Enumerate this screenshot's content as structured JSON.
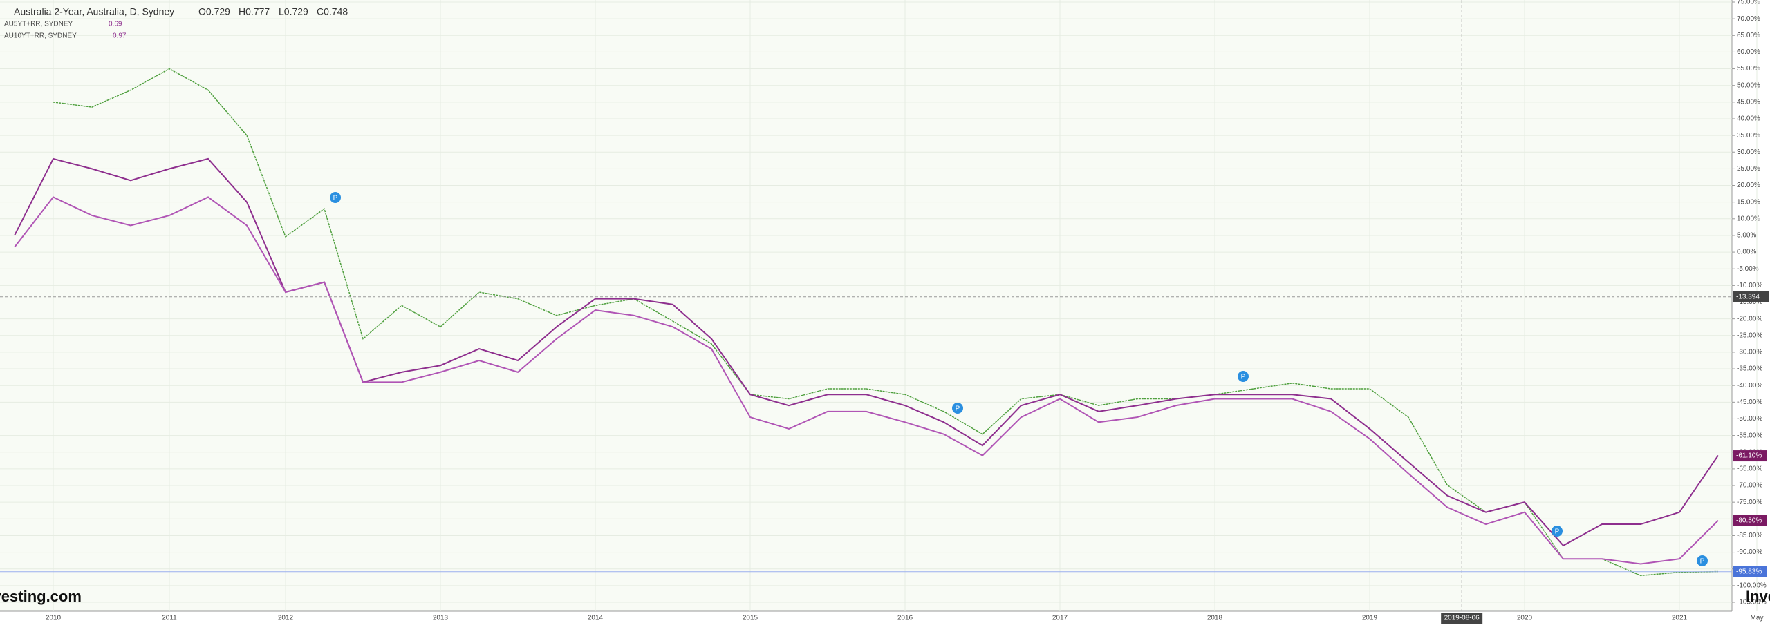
{
  "header": {
    "ohlc": [
      "O0.729",
      "H0.777",
      "L0.729",
      "C0.748"
    ]
  },
  "chart_data": {
    "type": "line",
    "categories": [
      null,
      "2010",
      null,
      null,
      "2011",
      null,
      null,
      "2012",
      null,
      null,
      null,
      "2013",
      null,
      null,
      null,
      "2014",
      null,
      null,
      null,
      "2015",
      null,
      null,
      null,
      "2016",
      null,
      null,
      null,
      "2017",
      null,
      null,
      null,
      "2018",
      null,
      null,
      null,
      "2019",
      null,
      null,
      null,
      "2020",
      null,
      null,
      null,
      "2021",
      null,
      "May"
    ],
    "series": [
      {
        "name": "Australia 2-Year, Australia, D, Sydney",
        "color": "#4e9f3d",
        "values": [
          null,
          45,
          43.5,
          48.6,
          55,
          48.6,
          35,
          4.6,
          13,
          -26,
          -16,
          -22.4,
          -12,
          -14,
          -19,
          -16,
          -14,
          -20.7,
          -27.5,
          -42.7,
          -44,
          -41,
          -41,
          -42.7,
          -47.8,
          -54.6,
          -44,
          -42.7,
          -46,
          -44,
          -44,
          -42.7,
          -41,
          -39.3,
          -41,
          -41,
          -49.5,
          -69.8,
          -78,
          -75,
          -92,
          -92,
          -97,
          -96,
          -95.8,
          null
        ]
      },
      {
        "name": "AU5YT+RR, SYDNEY",
        "color": "#8e2f8e",
        "last": "0.69",
        "values": [
          5,
          28,
          25,
          21.5,
          25,
          28,
          15,
          -12,
          -9,
          -39,
          -36,
          -34,
          -29,
          -32.5,
          -22.4,
          -14,
          -14,
          -15.7,
          -26,
          -42.7,
          -46,
          -42.7,
          -42.7,
          -46,
          -51,
          -58,
          -46,
          -42.7,
          -47.8,
          -46,
          -44,
          -42.7,
          -42.7,
          -42.7,
          -44,
          -53,
          -63,
          -73,
          -78,
          -75,
          -88,
          -81.6,
          -81.6,
          -78,
          -61,
          null
        ]
      },
      {
        "name": "AU10YT+RR, SYDNEY",
        "color": "#b055b5",
        "last": "0.97",
        "values": [
          1.5,
          16.5,
          11,
          8,
          11,
          16.5,
          8,
          -12,
          -9,
          -39,
          -39,
          -36,
          -32.5,
          -36,
          -26,
          -17.4,
          -19,
          -22.4,
          -29,
          -49.5,
          -53,
          -47.8,
          -47.8,
          -51,
          -54.6,
          -61,
          -49.5,
          -44,
          -51,
          -49.5,
          -46,
          -44,
          -44,
          -44,
          -47.8,
          -56,
          -66.4,
          -76.5,
          -81.6,
          -78,
          -92,
          -92,
          -93.5,
          -92,
          -80.5,
          null
        ]
      }
    ],
    "ylim": [
      -105,
      75
    ],
    "yticks": [
      {
        "value": 75,
        "label": "75.00%"
      },
      {
        "value": 70,
        "label": "70.00%"
      },
      {
        "value": 65,
        "label": "65.00%"
      },
      {
        "value": 60,
        "label": "60.00%"
      },
      {
        "value": 55,
        "label": "55.00%"
      },
      {
        "value": 50,
        "label": "50.00%"
      },
      {
        "value": 45,
        "label": "45.00%"
      },
      {
        "value": 40,
        "label": "40.00%"
      },
      {
        "value": 35,
        "label": "35.00%"
      },
      {
        "value": 30,
        "label": "30.00%"
      },
      {
        "value": 25,
        "label": "25.00%"
      },
      {
        "value": 20,
        "label": "20.00%"
      },
      {
        "value": 15,
        "label": "15.00%"
      },
      {
        "value": 10,
        "label": "10.00%"
      },
      {
        "value": 5,
        "label": "5.00%"
      },
      {
        "value": 0,
        "label": "0.00%"
      },
      {
        "value": -5,
        "label": "-5.00%"
      },
      {
        "value": -10,
        "label": "-10.00%"
      },
      {
        "value": -15,
        "label": "-15.00%"
      },
      {
        "value": -20,
        "label": "-20.00%"
      },
      {
        "value": -25,
        "label": "-25.00%"
      },
      {
        "value": -30,
        "label": "-30.00%"
      },
      {
        "value": -35,
        "label": "-35.00%"
      },
      {
        "value": -40,
        "label": "-40.00%"
      },
      {
        "value": -45,
        "label": "-45.00%"
      },
      {
        "value": -50,
        "label": "-50.00%"
      },
      {
        "value": -55,
        "label": "-55.00%"
      },
      {
        "value": -60,
        "label": "-60.00%"
      },
      {
        "value": -65,
        "label": "-65.00%"
      },
      {
        "value": -70,
        "label": "-70.00%"
      },
      {
        "value": -75,
        "label": "-75.00%"
      },
      {
        "value": -80,
        "label": "-80.00%"
      },
      {
        "value": -85,
        "label": "-85.00%"
      },
      {
        "value": -90,
        "label": "-90.00%"
      },
      {
        "value": -95,
        "label": "-95.00%"
      },
      {
        "value": -100,
        "label": "-100.00%"
      },
      {
        "value": -105,
        "label": "-105.00%"
      }
    ],
    "grid": true,
    "price_labels": [
      {
        "value": -61.1,
        "label": "-61.10%",
        "color": "#7b1a63"
      },
      {
        "value": -80.5,
        "label": "-80.50%",
        "color": "#7b1a63"
      },
      {
        "value": -95.83,
        "label": "-95.83%",
        "color": "#4a74d9"
      }
    ],
    "crosshair": {
      "x": "2019-08-06",
      "y": {
        "value": -13.394,
        "label": "-13.394"
      }
    },
    "event_label": "P",
    "watermark": [
      "Investing.com",
      "Inve"
    ]
  }
}
